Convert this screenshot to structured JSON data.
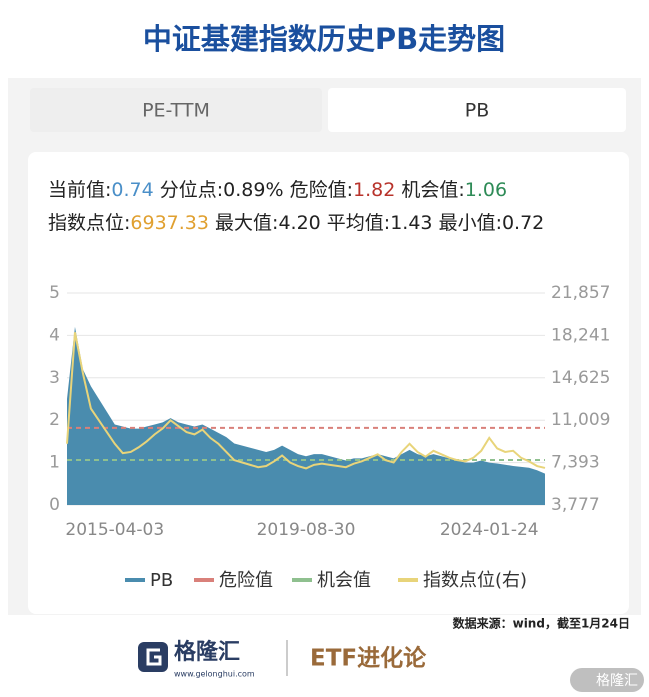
{
  "header": {
    "title": "中证基建指数历史PB走势图"
  },
  "tabs": [
    {
      "label": "PE-TTM",
      "active": false
    },
    {
      "label": "PB",
      "active": true
    }
  ],
  "stats": [
    [
      {
        "label": "当前值:",
        "value": "0.74",
        "color": "#4a8fc8"
      },
      {
        "label": "分位点:",
        "value": "0.89%"
      },
      {
        "label": "危险值:",
        "value": "1.82",
        "color": "#b8332b"
      },
      {
        "label": "机会值:",
        "value": "1.06",
        "color": "#2e8b57"
      }
    ],
    [
      {
        "label": "指数点位:",
        "value": "6937.33",
        "color": "#e0a030"
      },
      {
        "label": "最大值:",
        "value": "4.20"
      },
      {
        "label": "平均值:",
        "value": "1.43"
      },
      {
        "label": "最小值:",
        "value": "0.72"
      }
    ]
  ],
  "chart_data": {
    "type": "area",
    "categories": [
      null,
      null,
      null,
      null,
      null,
      null,
      "2015-04-03",
      null,
      null,
      null,
      null,
      null,
      null,
      null,
      null,
      null,
      null,
      null,
      null,
      null,
      null,
      null,
      null,
      null,
      null,
      null,
      null,
      null,
      null,
      null,
      "2019-08-30",
      null,
      null,
      null,
      null,
      null,
      null,
      null,
      null,
      null,
      null,
      null,
      null,
      null,
      null,
      null,
      null,
      null,
      null,
      null,
      null,
      null,
      null,
      "2024-01-24",
      null,
      null,
      null,
      null,
      null,
      null,
      null
    ],
    "series": [
      {
        "name": "PB",
        "color": "#4a8cae",
        "values": [
          2.5,
          4.2,
          3.2,
          2.8,
          2.5,
          2.2,
          1.9,
          1.85,
          1.8,
          1.8,
          1.85,
          1.9,
          1.95,
          2.05,
          1.95,
          1.9,
          1.85,
          1.9,
          1.8,
          1.7,
          1.6,
          1.45,
          1.4,
          1.35,
          1.3,
          1.25,
          1.3,
          1.4,
          1.3,
          1.2,
          1.15,
          1.2,
          1.2,
          1.15,
          1.1,
          1.05,
          1.1,
          1.1,
          1.15,
          1.2,
          1.15,
          1.1,
          1.2,
          1.3,
          1.2,
          1.15,
          1.2,
          1.15,
          1.1,
          1.05,
          1.0,
          1.0,
          1.05,
          1.0,
          0.98,
          0.95,
          0.92,
          0.9,
          0.88,
          0.82,
          0.74
        ]
      },
      {
        "name": "指数点位(右)",
        "color": "#e8d47a",
        "axis": "y2",
        "values": [
          9000,
          18500,
          15000,
          12000,
          11000,
          10000,
          9000,
          8200,
          8300,
          8700,
          9200,
          9800,
          10300,
          11000,
          10500,
          10000,
          9800,
          10200,
          9500,
          9000,
          8300,
          7600,
          7400,
          7200,
          7000,
          7100,
          7500,
          8000,
          7400,
          7100,
          6900,
          7200,
          7300,
          7200,
          7100,
          7000,
          7300,
          7500,
          7800,
          8100,
          7600,
          7400,
          8300,
          9000,
          8300,
          7900,
          8400,
          8100,
          7800,
          7600,
          7500,
          7800,
          8400,
          9500,
          8600,
          8300,
          8400,
          7800,
          7500,
          7100,
          6937.33
        ]
      }
    ],
    "reference_lines": [
      {
        "name": "危险值",
        "value": 1.82,
        "color": "#d9807a"
      },
      {
        "name": "机会值",
        "value": 1.06,
        "color": "#8fc08f"
      }
    ],
    "ylim": [
      0,
      5
    ],
    "yticks": [
      0,
      1,
      2,
      3,
      4,
      5
    ],
    "y2lim": [
      3777,
      21857
    ],
    "y2ticks": [
      {
        "value": 3777,
        "label": "3,777"
      },
      {
        "value": 7393,
        "label": "7,393"
      },
      {
        "value": 11009,
        "label": "11,009"
      },
      {
        "value": 14625,
        "label": "14,625"
      },
      {
        "value": 18241,
        "label": "18,241"
      },
      {
        "value": 21857,
        "label": "21,857"
      }
    ],
    "grid": true
  },
  "source": "数据来源：wind，截至1月24日",
  "footer": {
    "brand": "格隆汇",
    "url": "www.gelonghui.com",
    "column": "ETF进化论",
    "watermark": "格隆汇"
  }
}
